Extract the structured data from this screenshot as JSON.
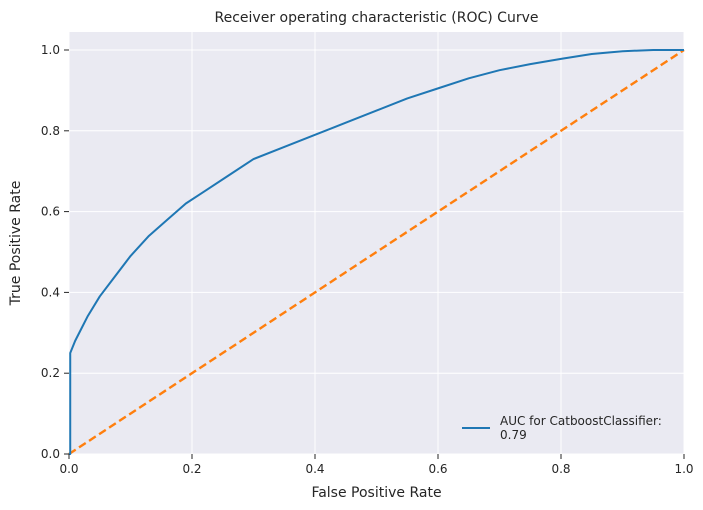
{
  "chart_data": {
    "type": "line",
    "title": "Receiver operating characteristic (ROC) Curve",
    "xlabel": "False Positive Rate",
    "ylabel": "True Positive Rate",
    "xlim": [
      0,
      1
    ],
    "ylim": [
      0,
      1
    ],
    "grid": true,
    "legend_position": "bottom-right",
    "x_ticks": [
      "0.0",
      "0.2",
      "0.4",
      "0.6",
      "0.8",
      "1.0"
    ],
    "y_ticks": [
      "0.0",
      "0.2",
      "0.4",
      "0.6",
      "0.8",
      "1.0"
    ],
    "series": [
      {
        "name": "AUC for CatboostClassifier:",
        "name_line2": "0.79",
        "color": "#1f77b4",
        "style": "solid",
        "x": [
          0,
          0.002,
          0.002,
          0.01,
          0.02,
          0.03,
          0.05,
          0.07,
          0.1,
          0.13,
          0.16,
          0.19,
          0.22,
          0.26,
          0.3,
          0.35,
          0.4,
          0.45,
          0.5,
          0.55,
          0.6,
          0.65,
          0.7,
          0.75,
          0.8,
          0.85,
          0.9,
          0.95,
          1.0
        ],
        "y": [
          0,
          0,
          0.25,
          0.28,
          0.31,
          0.34,
          0.39,
          0.43,
          0.49,
          0.54,
          0.58,
          0.62,
          0.65,
          0.69,
          0.73,
          0.76,
          0.79,
          0.82,
          0.85,
          0.88,
          0.905,
          0.93,
          0.95,
          0.965,
          0.978,
          0.99,
          0.997,
          1.0,
          1.0
        ]
      },
      {
        "name": "",
        "color": "#ff7f0e",
        "style": "dashed",
        "x": [
          0,
          1
        ],
        "y": [
          0,
          1
        ]
      }
    ]
  }
}
